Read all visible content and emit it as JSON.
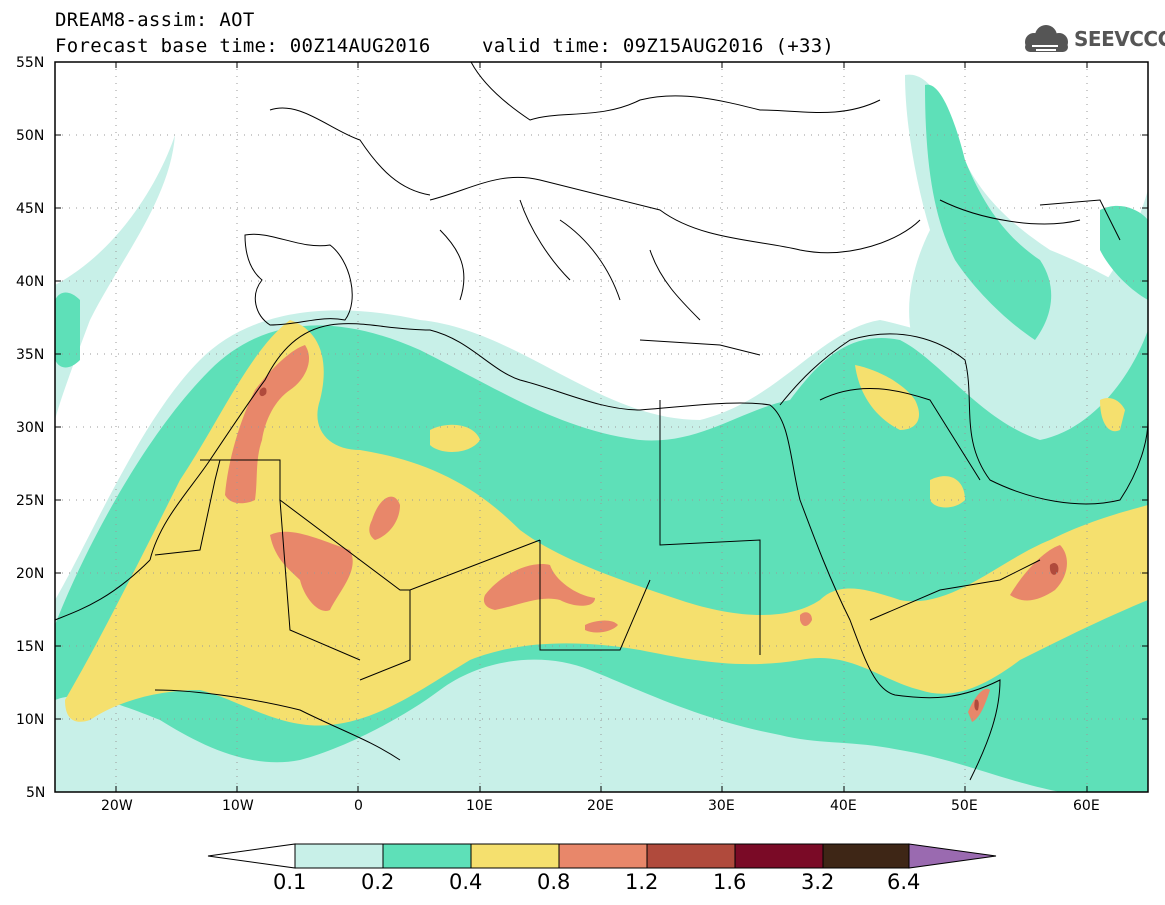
{
  "header": {
    "title": "DREAM8-assim: AOT",
    "base_time": "Forecast base time: 00Z14AUG2016",
    "valid_time": "valid time: 09Z15AUG2016 (+33)",
    "logo_text": "SEEVCCC"
  },
  "map": {
    "lat_labels": [
      "55N",
      "50N",
      "45N",
      "40N",
      "35N",
      "30N",
      "25N",
      "20N",
      "15N",
      "10N",
      "5N"
    ],
    "lon_labels": [
      "20W",
      "10W",
      "0",
      "10E",
      "20E",
      "30E",
      "40E",
      "50E",
      "60E"
    ],
    "lon_range": [
      -25,
      65
    ],
    "lat_range": [
      5,
      55
    ]
  },
  "legend": {
    "levels": [
      "0.1",
      "0.2",
      "0.4",
      "0.8",
      "1.2",
      "1.6",
      "3.2",
      "6.4"
    ],
    "colors": [
      "#c8f0e8",
      "#5ee0b8",
      "#f5e06e",
      "#e8876a",
      "#b04a3c",
      "#7a0a26",
      "#3e2616",
      "#9a6ab0"
    ]
  }
}
